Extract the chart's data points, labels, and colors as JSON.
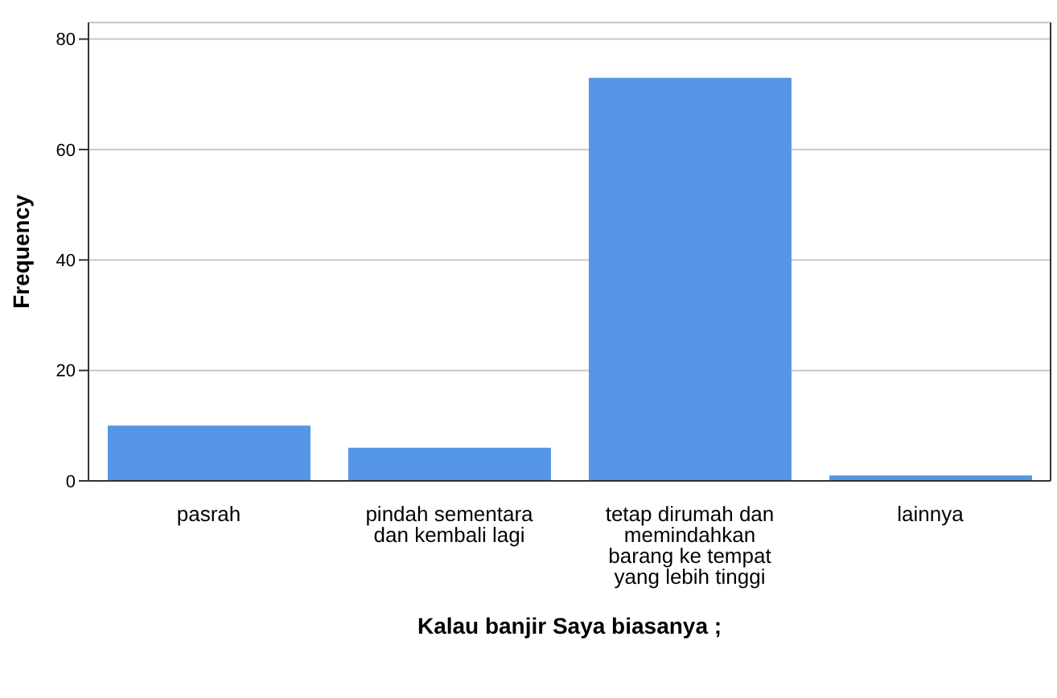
{
  "chart_data": {
    "type": "bar",
    "xlabel": "Kalau banjir Saya biasanya ;",
    "ylabel": "Frequency",
    "categories": [
      "pasrah",
      "pindah sementara dan kembali lagi",
      "tetap dirumah dan memindahkan barang ke tempat yang lebih tinggi",
      "lainnya"
    ],
    "values": [
      10,
      6,
      73,
      1
    ],
    "color": "#5596e6",
    "ylim": [
      0,
      83
    ],
    "yticks": [
      0,
      20,
      40,
      60,
      80
    ],
    "grid": "y"
  }
}
